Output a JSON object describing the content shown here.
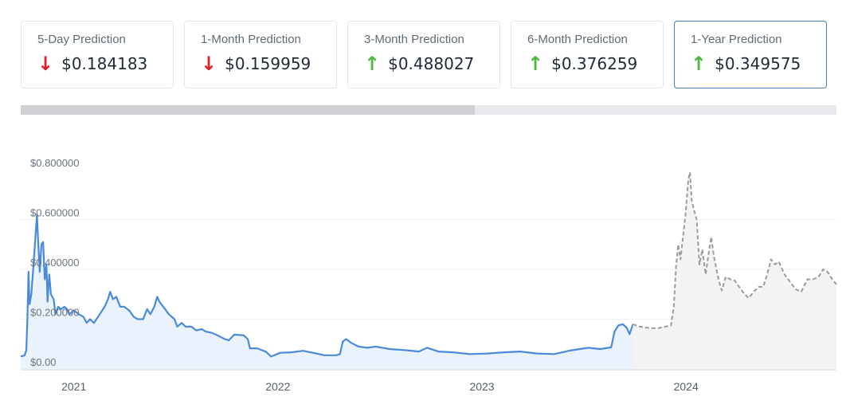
{
  "cards": [
    {
      "label": "5-Day Prediction",
      "value": "$0.184183",
      "direction": "down",
      "icon": "arrow-down-icon"
    },
    {
      "label": "1-Month Prediction",
      "value": "$0.159959",
      "direction": "down",
      "icon": "arrow-down-icon"
    },
    {
      "label": "3-Month Prediction",
      "value": "$0.488027",
      "direction": "up",
      "icon": "arrow-up-icon"
    },
    {
      "label": "6-Month Prediction",
      "value": "$0.376259",
      "direction": "up",
      "icon": "arrow-up-icon"
    },
    {
      "label": "1-Year Prediction",
      "value": "$0.349575",
      "direction": "up",
      "icon": "arrow-up-icon",
      "selected": true
    }
  ],
  "colors": {
    "up": "#4cba3c",
    "down": "#d8232a",
    "historical": "#4a8ad8",
    "prediction": "#9b9b9b",
    "selected_border": "#3c7fb8"
  },
  "scrollbar": {
    "position_fraction": 0.557
  },
  "chart_data": {
    "type": "line",
    "grid": true,
    "xlim": [
      "2020-09-28",
      "2024-09-26"
    ],
    "ylim": [
      0,
      0.8
    ],
    "yticks": [
      {
        "v": 0,
        "label": "$0.00"
      },
      {
        "v": 0.2,
        "label": "$0.200000"
      },
      {
        "v": 0.4,
        "label": "$0.400000"
      },
      {
        "v": 0.6,
        "label": "$0.600000"
      },
      {
        "v": 0.8,
        "label": "$0.800000"
      }
    ],
    "xticks": [
      {
        "d": "2021-01-01",
        "label": "2021"
      },
      {
        "d": "2022-01-01",
        "label": "2022"
      },
      {
        "d": "2023-01-01",
        "label": "2023"
      },
      {
        "d": "2024-01-01",
        "label": "2024"
      }
    ],
    "series": [
      {
        "style": "solid-area",
        "points": [
          [
            "2020-09-28",
            0.05
          ],
          [
            "2020-10-05",
            0.055
          ],
          [
            "2020-10-08",
            0.075
          ],
          [
            "2020-10-10",
            0.2
          ],
          [
            "2020-10-12",
            0.39
          ],
          [
            "2020-10-14",
            0.26
          ],
          [
            "2020-10-17",
            0.3
          ],
          [
            "2020-10-21",
            0.42
          ],
          [
            "2020-10-25",
            0.55
          ],
          [
            "2020-10-27",
            0.62
          ],
          [
            "2020-10-29",
            0.52
          ],
          [
            "2020-11-01",
            0.39
          ],
          [
            "2020-11-04",
            0.5
          ],
          [
            "2020-11-07",
            0.51
          ],
          [
            "2020-11-10",
            0.36
          ],
          [
            "2020-11-13",
            0.42
          ],
          [
            "2020-11-15",
            0.27
          ],
          [
            "2020-11-18",
            0.38
          ],
          [
            "2020-11-21",
            0.3
          ],
          [
            "2020-11-26",
            0.28
          ],
          [
            "2020-11-29",
            0.22
          ],
          [
            "2020-12-04",
            0.25
          ],
          [
            "2020-12-09",
            0.24
          ],
          [
            "2020-12-15",
            0.25
          ],
          [
            "2020-12-20",
            0.24
          ],
          [
            "2020-12-24",
            0.22
          ],
          [
            "2021-01-01",
            0.235
          ],
          [
            "2021-01-10",
            0.22
          ],
          [
            "2021-01-18",
            0.21
          ],
          [
            "2021-01-24",
            0.185
          ],
          [
            "2021-01-30",
            0.2
          ],
          [
            "2021-02-06",
            0.185
          ],
          [
            "2021-02-15",
            0.215
          ],
          [
            "2021-02-25",
            0.25
          ],
          [
            "2021-03-03",
            0.28
          ],
          [
            "2021-03-07",
            0.31
          ],
          [
            "2021-03-12",
            0.28
          ],
          [
            "2021-03-18",
            0.29
          ],
          [
            "2021-03-25",
            0.25
          ],
          [
            "2021-04-01",
            0.25
          ],
          [
            "2021-04-10",
            0.235
          ],
          [
            "2021-04-18",
            0.21
          ],
          [
            "2021-04-25",
            0.2
          ],
          [
            "2021-05-05",
            0.2
          ],
          [
            "2021-05-12",
            0.24
          ],
          [
            "2021-05-18",
            0.22
          ],
          [
            "2021-05-25",
            0.25
          ],
          [
            "2021-05-30",
            0.29
          ],
          [
            "2021-06-03",
            0.27
          ],
          [
            "2021-06-10",
            0.25
          ],
          [
            "2021-06-20",
            0.22
          ],
          [
            "2021-06-30",
            0.2
          ],
          [
            "2021-07-05",
            0.17
          ],
          [
            "2021-07-13",
            0.185
          ],
          [
            "2021-07-20",
            0.17
          ],
          [
            "2021-07-30",
            0.17
          ],
          [
            "2021-08-08",
            0.155
          ],
          [
            "2021-08-18",
            0.16
          ],
          [
            "2021-08-25",
            0.15
          ],
          [
            "2021-09-05",
            0.145
          ],
          [
            "2021-09-15",
            0.135
          ],
          [
            "2021-09-28",
            0.12
          ],
          [
            "2021-10-05",
            0.115
          ],
          [
            "2021-10-15",
            0.138
          ],
          [
            "2021-11-01",
            0.135
          ],
          [
            "2021-11-08",
            0.12
          ],
          [
            "2021-11-12",
            0.083
          ],
          [
            "2021-11-25",
            0.083
          ],
          [
            "2021-12-10",
            0.07
          ],
          [
            "2021-12-20",
            0.05
          ],
          [
            "2022-01-05",
            0.065
          ],
          [
            "2022-01-25",
            0.067
          ],
          [
            "2022-02-15",
            0.073
          ],
          [
            "2022-03-05",
            0.065
          ],
          [
            "2022-03-25",
            0.055
          ],
          [
            "2022-04-15",
            0.055
          ],
          [
            "2022-04-22",
            0.06
          ],
          [
            "2022-04-27",
            0.11
          ],
          [
            "2022-05-03",
            0.12
          ],
          [
            "2022-05-12",
            0.105
          ],
          [
            "2022-05-25",
            0.09
          ],
          [
            "2022-06-10",
            0.085
          ],
          [
            "2022-06-25",
            0.09
          ],
          [
            "2022-07-20",
            0.08
          ],
          [
            "2022-08-20",
            0.075
          ],
          [
            "2022-09-10",
            0.07
          ],
          [
            "2022-09-25",
            0.085
          ],
          [
            "2022-10-15",
            0.07
          ],
          [
            "2022-11-10",
            0.067
          ],
          [
            "2022-12-10",
            0.06
          ],
          [
            "2023-01-10",
            0.062
          ],
          [
            "2023-02-10",
            0.067
          ],
          [
            "2023-03-10",
            0.07
          ],
          [
            "2023-04-10",
            0.062
          ],
          [
            "2023-05-10",
            0.06
          ],
          [
            "2023-06-10",
            0.075
          ],
          [
            "2023-07-10",
            0.085
          ],
          [
            "2023-08-01",
            0.08
          ],
          [
            "2023-08-20",
            0.087
          ],
          [
            "2023-08-26",
            0.15
          ],
          [
            "2023-09-02",
            0.175
          ],
          [
            "2023-09-10",
            0.18
          ],
          [
            "2023-09-17",
            0.165
          ],
          [
            "2023-09-22",
            0.14
          ],
          [
            "2023-09-28",
            0.18
          ]
        ]
      },
      {
        "style": "dashed-area",
        "points": [
          [
            "2023-09-28",
            0.18
          ],
          [
            "2023-10-10",
            0.17
          ],
          [
            "2023-10-25",
            0.165
          ],
          [
            "2023-11-10",
            0.163
          ],
          [
            "2023-11-25",
            0.17
          ],
          [
            "2023-12-05",
            0.175
          ],
          [
            "2023-12-10",
            0.25
          ],
          [
            "2023-12-14",
            0.41
          ],
          [
            "2023-12-18",
            0.5
          ],
          [
            "2023-12-22",
            0.44
          ],
          [
            "2023-12-26",
            0.52
          ],
          [
            "2023-12-31",
            0.62
          ],
          [
            "2024-01-05",
            0.76
          ],
          [
            "2024-01-08",
            0.79
          ],
          [
            "2024-01-11",
            0.68
          ],
          [
            "2024-01-15",
            0.64
          ],
          [
            "2024-01-20",
            0.6
          ],
          [
            "2024-01-25",
            0.42
          ],
          [
            "2024-01-30",
            0.48
          ],
          [
            "2024-02-05",
            0.38
          ],
          [
            "2024-02-10",
            0.46
          ],
          [
            "2024-02-15",
            0.53
          ],
          [
            "2024-02-20",
            0.45
          ],
          [
            "2024-02-28",
            0.36
          ],
          [
            "2024-03-05",
            0.315
          ],
          [
            "2024-03-12",
            0.37
          ],
          [
            "2024-03-20",
            0.36
          ],
          [
            "2024-03-28",
            0.355
          ],
          [
            "2024-04-08",
            0.32
          ],
          [
            "2024-04-15",
            0.3
          ],
          [
            "2024-04-22",
            0.285
          ],
          [
            "2024-05-01",
            0.31
          ],
          [
            "2024-05-10",
            0.33
          ],
          [
            "2024-05-18",
            0.33
          ],
          [
            "2024-05-25",
            0.38
          ],
          [
            "2024-06-01",
            0.44
          ],
          [
            "2024-06-08",
            0.42
          ],
          [
            "2024-06-15",
            0.43
          ],
          [
            "2024-06-25",
            0.38
          ],
          [
            "2024-07-05",
            0.35
          ],
          [
            "2024-07-15",
            0.32
          ],
          [
            "2024-07-25",
            0.31
          ],
          [
            "2024-08-05",
            0.36
          ],
          [
            "2024-08-15",
            0.36
          ],
          [
            "2024-08-25",
            0.37
          ],
          [
            "2024-09-02",
            0.4
          ],
          [
            "2024-09-10",
            0.39
          ],
          [
            "2024-09-20",
            0.355
          ],
          [
            "2024-09-26",
            0.34
          ]
        ]
      }
    ]
  }
}
